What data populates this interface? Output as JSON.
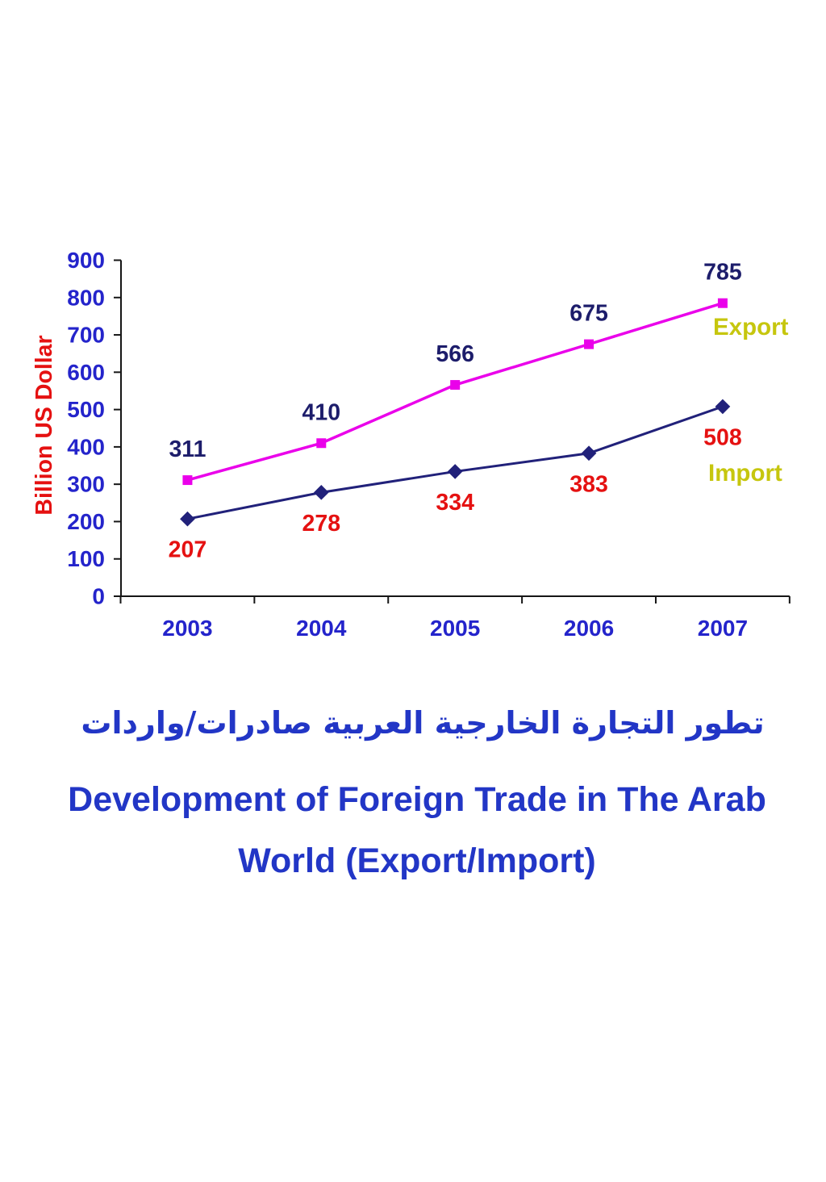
{
  "title": {
    "arabic": "تطور التجارة الخارجية العربية صادرات/واردات",
    "english_lines": [
      "Development of Foreign Trade in The Arab",
      "World (Export/Import)"
    ],
    "color": "#2236c6"
  },
  "chart_data": {
    "type": "line",
    "categories": [
      "2003",
      "2004",
      "2005",
      "2006",
      "2007"
    ],
    "series": [
      {
        "name": "Export",
        "values": [
          311,
          410,
          566,
          675,
          785
        ],
        "line_color": "#ea00ea",
        "marker": "square",
        "marker_color": "#ea00ea",
        "label_color": "#1d1d6b",
        "label_position": "above"
      },
      {
        "name": "Import",
        "values": [
          207,
          278,
          334,
          383,
          508
        ],
        "line_color": "#21217a",
        "marker": "diamond",
        "marker_color": "#21217a",
        "label_color": "#e51111",
        "label_position": "below"
      }
    ],
    "title": "",
    "xlabel": "",
    "ylabel": "Billion US Dollar",
    "ylim": [
      0,
      900
    ],
    "ytick_step": 100,
    "grid": false,
    "legend_position": "right of last points",
    "colors": {
      "axis": "#161616",
      "tick_labels": "#2424cb",
      "ylabel": "#e51111",
      "legend_text": "#c6c60e"
    }
  }
}
